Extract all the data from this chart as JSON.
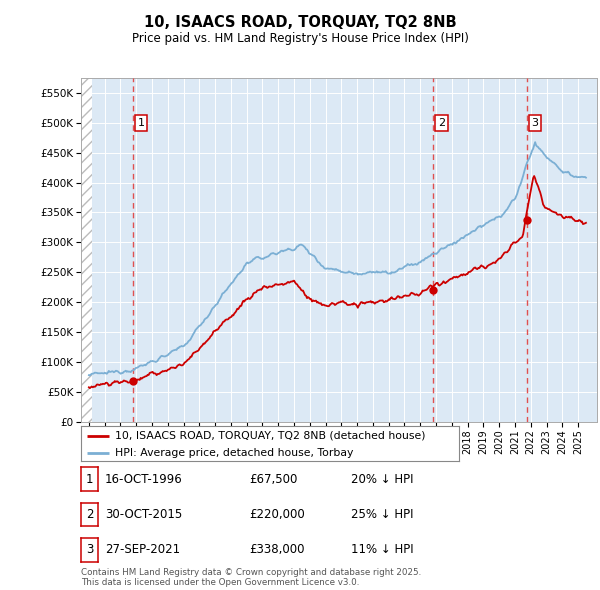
{
  "title": "10, ISAACS ROAD, TORQUAY, TQ2 8NB",
  "subtitle": "Price paid vs. HM Land Registry's House Price Index (HPI)",
  "ylabel_ticks": [
    "£0",
    "£50K",
    "£100K",
    "£150K",
    "£200K",
    "£250K",
    "£300K",
    "£350K",
    "£400K",
    "£450K",
    "£500K",
    "£550K"
  ],
  "ytick_values": [
    0,
    50000,
    100000,
    150000,
    200000,
    250000,
    300000,
    350000,
    400000,
    450000,
    500000,
    550000
  ],
  "ylim": [
    0,
    575000
  ],
  "xlim_start": 1993.5,
  "xlim_end": 2026.2,
  "sale_dates": [
    1996.79,
    2015.83,
    2021.74
  ],
  "sale_prices": [
    67500,
    220000,
    338000
  ],
  "sale_labels": [
    "1",
    "2",
    "3"
  ],
  "legend_line1": "10, ISAACS ROAD, TORQUAY, TQ2 8NB (detached house)",
  "legend_line2": "HPI: Average price, detached house, Torbay",
  "table_entries": [
    {
      "num": "1",
      "date": "16-OCT-1996",
      "price": "£67,500",
      "hpi": "20% ↓ HPI"
    },
    {
      "num": "2",
      "date": "30-OCT-2015",
      "price": "£220,000",
      "hpi": "25% ↓ HPI"
    },
    {
      "num": "3",
      "date": "27-SEP-2021",
      "price": "£338,000",
      "hpi": "11% ↓ HPI"
    }
  ],
  "footer": "Contains HM Land Registry data © Crown copyright and database right 2025.\nThis data is licensed under the Open Government Licence v3.0.",
  "hpi_color": "#7bafd4",
  "sale_color": "#cc0000",
  "background_chart": "#dce9f5",
  "grid_color": "#ffffff",
  "dashed_line_color": "#e05050"
}
